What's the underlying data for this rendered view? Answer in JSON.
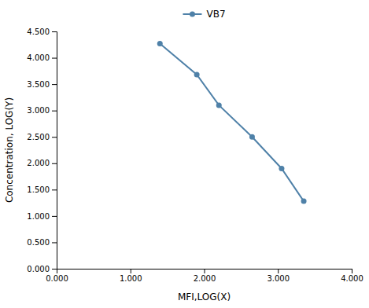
{
  "chart_data": {
    "type": "line",
    "xlabel": "MFI,LOG(X)",
    "ylabel": "Concentration, LOG(Y)",
    "x": [
      1.4,
      1.9,
      2.2,
      2.65,
      3.05,
      3.35
    ],
    "series": [
      {
        "name": "VB7",
        "color": "#4f81a8",
        "values": [
          4.27,
          3.68,
          3.1,
          2.5,
          1.9,
          1.28
        ]
      }
    ],
    "marker": "circle",
    "legend": "top",
    "grid": false,
    "xlim": [
      0.0,
      4.0
    ],
    "ylim": [
      0.0,
      4.5
    ],
    "xticks": [
      {
        "value": 0.0,
        "label": "0.000"
      },
      {
        "value": 1.0,
        "label": "1.000"
      },
      {
        "value": 2.0,
        "label": "2.000"
      },
      {
        "value": 3.0,
        "label": "3.000"
      },
      {
        "value": 4.0,
        "label": "4.000"
      }
    ],
    "yticks": [
      {
        "value": 0.0,
        "label": "0.000"
      },
      {
        "value": 0.5,
        "label": "0.500"
      },
      {
        "value": 1.0,
        "label": "1.000"
      },
      {
        "value": 1.5,
        "label": "1.500"
      },
      {
        "value": 2.0,
        "label": "2.000"
      },
      {
        "value": 2.5,
        "label": "2.500"
      },
      {
        "value": 3.0,
        "label": "3.000"
      },
      {
        "value": 3.5,
        "label": "3.500"
      },
      {
        "value": 4.0,
        "label": "4.000"
      },
      {
        "value": 4.5,
        "label": "4.500"
      }
    ]
  }
}
